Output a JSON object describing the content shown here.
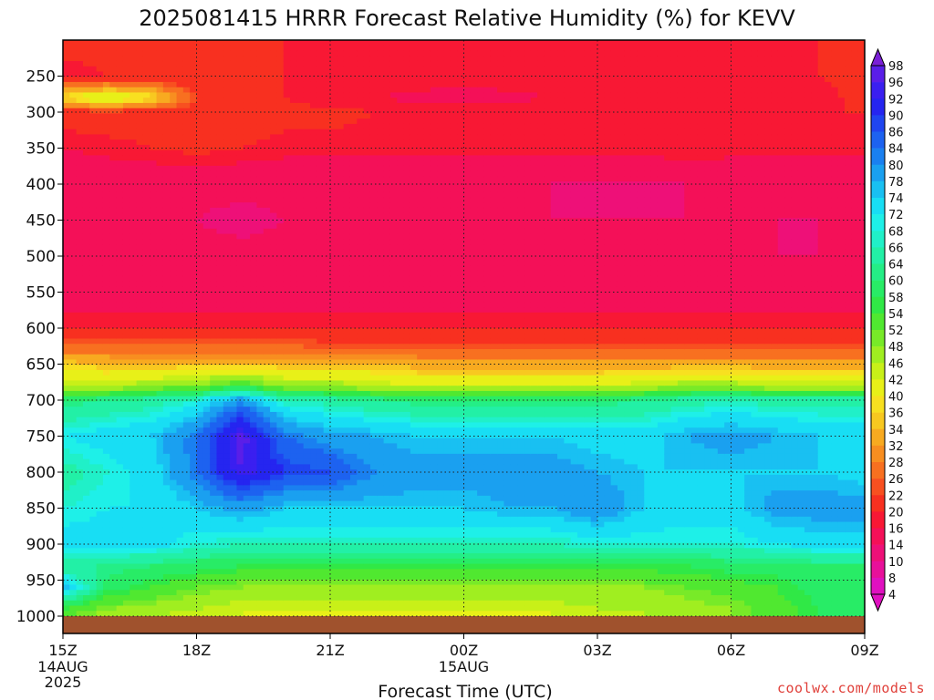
{
  "title": "2025081415 HRRR Forecast Relative Humidity (%) for KEVV",
  "credit": "coolwx.com/models",
  "chart_data": {
    "type": "heatmap",
    "title": "2025081415 HRRR Forecast Relative Humidity (%) for KEVV",
    "xlabel": "Forecast Time (UTC)",
    "ylabel": "",
    "x_ticks": [
      {
        "label": "15Z",
        "sub": [
          "14AUG",
          "2025"
        ]
      },
      {
        "label": "18Z",
        "sub": []
      },
      {
        "label": "21Z",
        "sub": []
      },
      {
        "label": "00Z",
        "sub": [
          "15AUG"
        ]
      },
      {
        "label": "03Z",
        "sub": []
      },
      {
        "label": "06Z",
        "sub": []
      },
      {
        "label": "09Z",
        "sub": []
      }
    ],
    "x_hours": [
      0,
      3,
      6,
      9,
      12,
      15,
      18
    ],
    "pressure_levels": [
      250,
      300,
      350,
      400,
      450,
      500,
      550,
      600,
      650,
      700,
      750,
      800,
      850,
      900,
      950,
      1000
    ],
    "y_range": [
      200,
      1030
    ],
    "grid": true,
    "colorbar": {
      "labels": [
        98,
        96,
        92,
        90,
        86,
        84,
        80,
        78,
        74,
        72,
        68,
        66,
        64,
        60,
        58,
        54,
        52,
        48,
        46,
        42,
        40,
        36,
        34,
        32,
        28,
        26,
        22,
        20,
        16,
        14,
        10,
        8,
        4
      ],
      "colors": [
        "#7a1fd6",
        "#5a1ee8",
        "#3a1ff0",
        "#2525f0",
        "#1f45f0",
        "#1d62f0",
        "#1a80f0",
        "#1aa0f0",
        "#19c0f2",
        "#18def4",
        "#1ef0e8",
        "#20f0c8",
        "#22f0a6",
        "#24ee86",
        "#28ec66",
        "#30e846",
        "#50e830",
        "#78ea28",
        "#a0ee20",
        "#c8f018",
        "#e8f018",
        "#f8e020",
        "#f8c820",
        "#f8aa20",
        "#f88e20",
        "#f87020",
        "#f85020",
        "#f83020",
        "#f81834",
        "#f41058",
        "#ee1078",
        "#e8109a",
        "#e010c0"
      ]
    },
    "series": [
      {
        "x": 0,
        "rh": {
          "200": 18,
          "250": 14,
          "280": 36,
          "300": 18,
          "350": 14,
          "400": 10,
          "450": 10,
          "500": 11,
          "550": 11,
          "600": 16,
          "630": 24,
          "650": 34,
          "680": 42,
          "700": 58,
          "750": 68,
          "800": 62,
          "850": 66,
          "900": 70,
          "930": 60,
          "960": 74,
          "990": 52,
          "1000": 48
        }
      },
      {
        "x": 1,
        "rh": {
          "200": 18,
          "250": 16,
          "280": 42,
          "300": 18,
          "350": 15,
          "400": 11,
          "450": 10,
          "500": 11,
          "550": 12,
          "600": 16,
          "630": 24,
          "650": 32,
          "680": 42,
          "700": 60,
          "750": 70,
          "800": 66,
          "850": 68,
          "900": 70,
          "930": 60,
          "960": 56,
          "990": 46,
          "1000": 44
        }
      },
      {
        "x": 2,
        "rh": {
          "200": 18,
          "250": 16,
          "280": 36,
          "300": 18,
          "350": 16,
          "400": 11,
          "450": 11,
          "500": 11,
          "550": 12,
          "600": 16,
          "630": 24,
          "650": 32,
          "680": 44,
          "700": 62,
          "750": 72,
          "800": 70,
          "850": 68,
          "900": 70,
          "930": 58,
          "960": 52,
          "990": 44,
          "1000": 42
        }
      },
      {
        "x": 3,
        "rh": {
          "200": 18,
          "250": 16,
          "280": 20,
          "300": 18,
          "350": 17,
          "400": 11,
          "450": 10,
          "500": 11,
          "550": 12,
          "600": 16,
          "630": 24,
          "650": 32,
          "680": 46,
          "700": 66,
          "750": 80,
          "800": 80,
          "850": 72,
          "900": 66,
          "930": 56,
          "960": 48,
          "990": 42,
          "1000": 40
        }
      },
      {
        "x": 4,
        "rh": {
          "200": 18,
          "250": 16,
          "280": 18,
          "300": 18,
          "350": 16,
          "400": 11,
          "450": 9,
          "500": 11,
          "550": 12,
          "600": 16,
          "630": 24,
          "650": 32,
          "680": 52,
          "700": 78,
          "750": 94,
          "800": 92,
          "850": 76,
          "900": 64,
          "930": 54,
          "960": 46,
          "990": 40,
          "1000": 40
        }
      },
      {
        "x": 5,
        "rh": {
          "200": 16,
          "250": 16,
          "280": 16,
          "300": 17,
          "350": 15,
          "400": 11,
          "450": 10,
          "500": 11,
          "550": 12,
          "600": 16,
          "630": 24,
          "650": 32,
          "680": 44,
          "700": 64,
          "750": 80,
          "800": 86,
          "850": 72,
          "900": 64,
          "930": 54,
          "960": 46,
          "990": 40,
          "1000": 40
        }
      },
      {
        "x": 6,
        "rh": {
          "200": 16,
          "250": 14,
          "280": 14,
          "300": 17,
          "350": 15,
          "400": 11,
          "450": 10,
          "500": 11,
          "550": 12,
          "600": 16,
          "630": 22,
          "650": 32,
          "680": 44,
          "700": 62,
          "750": 76,
          "800": 84,
          "850": 72,
          "900": 64,
          "930": 54,
          "960": 46,
          "990": 40,
          "1000": 40
        }
      },
      {
        "x": 7,
        "rh": {
          "200": 16,
          "250": 16,
          "280": 14,
          "300": 16,
          "350": 15,
          "400": 11,
          "450": 10,
          "500": 11,
          "550": 12,
          "600": 16,
          "630": 22,
          "650": 32,
          "680": 42,
          "700": 60,
          "750": 74,
          "800": 78,
          "850": 72,
          "900": 64,
          "930": 54,
          "960": 46,
          "990": 40,
          "1000": 40
        }
      },
      {
        "x": 8,
        "rh": {
          "200": 16,
          "250": 16,
          "280": 13,
          "300": 16,
          "350": 15,
          "400": 11,
          "450": 10,
          "500": 11,
          "550": 12,
          "600": 16,
          "630": 22,
          "650": 30,
          "680": 40,
          "700": 58,
          "750": 72,
          "800": 76,
          "850": 72,
          "900": 64,
          "930": 54,
          "960": 46,
          "990": 40,
          "1000": 40
        }
      },
      {
        "x": 9,
        "rh": {
          "200": 16,
          "250": 15,
          "280": 13,
          "300": 16,
          "350": 15,
          "400": 11,
          "450": 10,
          "500": 11,
          "550": 12,
          "600": 16,
          "630": 22,
          "650": 30,
          "680": 40,
          "700": 58,
          "750": 72,
          "800": 76,
          "850": 72,
          "900": 64,
          "930": 54,
          "960": 46,
          "990": 40,
          "1000": 40
        }
      },
      {
        "x": 10,
        "rh": {
          "200": 16,
          "250": 16,
          "280": 13,
          "300": 16,
          "350": 15,
          "400": 11,
          "450": 10,
          "500": 11,
          "550": 12,
          "600": 16,
          "630": 22,
          "650": 30,
          "680": 40,
          "700": 58,
          "750": 72,
          "800": 76,
          "850": 74,
          "900": 64,
          "930": 54,
          "960": 46,
          "990": 40,
          "1000": 40
        }
      },
      {
        "x": 11,
        "rh": {
          "200": 16,
          "250": 16,
          "280": 14,
          "300": 16,
          "350": 15,
          "400": 10,
          "450": 10,
          "500": 11,
          "550": 12,
          "600": 16,
          "630": 22,
          "650": 30,
          "680": 40,
          "700": 58,
          "750": 72,
          "800": 76,
          "850": 74,
          "900": 64,
          "930": 54,
          "960": 46,
          "990": 40,
          "1000": 40
        }
      },
      {
        "x": 12,
        "rh": {
          "200": 16,
          "250": 16,
          "280": 14,
          "300": 16,
          "350": 15,
          "400": 10,
          "450": 10,
          "500": 11,
          "550": 12,
          "600": 16,
          "630": 22,
          "650": 30,
          "680": 40,
          "700": 58,
          "750": 70,
          "800": 74,
          "850": 78,
          "900": 66,
          "930": 54,
          "960": 46,
          "990": 42,
          "1000": 42
        }
      },
      {
        "x": 13,
        "rh": {
          "200": 16,
          "250": 16,
          "280": 14,
          "300": 16,
          "350": 15,
          "400": 10,
          "450": 10,
          "500": 11,
          "550": 12,
          "600": 16,
          "630": 22,
          "650": 30,
          "680": 42,
          "700": 60,
          "750": 70,
          "800": 72,
          "850": 72,
          "900": 66,
          "930": 54,
          "960": 46,
          "990": 42,
          "1000": 42
        }
      },
      {
        "x": 14,
        "rh": {
          "200": 16,
          "250": 16,
          "280": 14,
          "300": 16,
          "350": 16,
          "400": 10,
          "450": 10,
          "500": 11,
          "550": 12,
          "600": 16,
          "630": 22,
          "650": 30,
          "680": 44,
          "700": 62,
          "750": 74,
          "800": 72,
          "850": 70,
          "900": 66,
          "930": 54,
          "960": 48,
          "990": 44,
          "1000": 44
        }
      },
      {
        "x": 15,
        "rh": {
          "200": 16,
          "250": 16,
          "280": 14,
          "300": 16,
          "350": 15,
          "400": 11,
          "450": 10,
          "500": 11,
          "550": 12,
          "600": 16,
          "630": 22,
          "650": 30,
          "680": 44,
          "700": 64,
          "750": 76,
          "800": 72,
          "850": 70,
          "900": 66,
          "930": 56,
          "960": 50,
          "990": 46,
          "1000": 46
        }
      },
      {
        "x": 16,
        "rh": {
          "200": 16,
          "250": 16,
          "280": 14,
          "300": 16,
          "350": 15,
          "400": 11,
          "450": 10,
          "500": 10,
          "550": 12,
          "600": 16,
          "630": 22,
          "650": 30,
          "680": 42,
          "700": 62,
          "750": 74,
          "800": 72,
          "850": 76,
          "900": 68,
          "930": 56,
          "960": 52,
          "990": 50,
          "1000": 50
        }
      },
      {
        "x": 17,
        "rh": {
          "200": 16,
          "250": 16,
          "280": 14,
          "300": 16,
          "350": 15,
          "400": 11,
          "450": 10,
          "500": 10,
          "550": 12,
          "600": 16,
          "630": 22,
          "650": 30,
          "680": 42,
          "700": 62,
          "750": 72,
          "800": 72,
          "850": 76,
          "900": 70,
          "930": 58,
          "960": 56,
          "990": 54,
          "1000": 54
        }
      },
      {
        "x": 18,
        "rh": {
          "200": 16,
          "250": 18,
          "280": 18,
          "300": 16,
          "350": 15,
          "400": 11,
          "450": 10,
          "500": 11,
          "550": 12,
          "600": 16,
          "630": 22,
          "650": 30,
          "680": 42,
          "700": 62,
          "750": 72,
          "800": 70,
          "850": 76,
          "900": 70,
          "930": 58,
          "960": 56,
          "990": 56,
          "1000": 56
        }
      }
    ]
  }
}
